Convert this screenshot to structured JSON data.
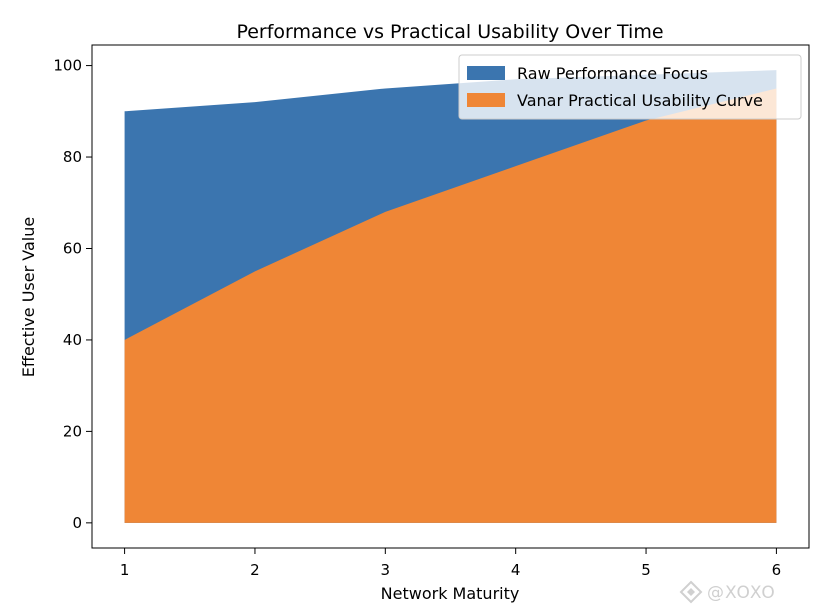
{
  "chart_data": {
    "type": "area",
    "title": "Performance vs Practical Usability Over Time",
    "xlabel": "Network Maturity",
    "ylabel": "Effective User Value",
    "x": [
      1,
      2,
      3,
      4,
      5,
      6
    ],
    "xticks": [
      "1",
      "2",
      "3",
      "4",
      "5",
      "6"
    ],
    "yticks": [
      "0",
      "20",
      "40",
      "60",
      "80",
      "100"
    ],
    "xlim": [
      0.75,
      6.25
    ],
    "ylim": [
      -5.5,
      104.5
    ],
    "grid": false,
    "legend_position": "top-right",
    "series": [
      {
        "name": "Raw Performance Focus",
        "values": [
          90,
          92,
          95,
          97,
          98,
          99
        ],
        "color": "#3b75af"
      },
      {
        "name": "Vanar Practical Usability Curve",
        "values": [
          40,
          55,
          68,
          78,
          88,
          95
        ],
        "color": "#ef8636"
      }
    ]
  },
  "watermark": {
    "text": "@XOXO",
    "icon": "watermark-logo-icon"
  }
}
